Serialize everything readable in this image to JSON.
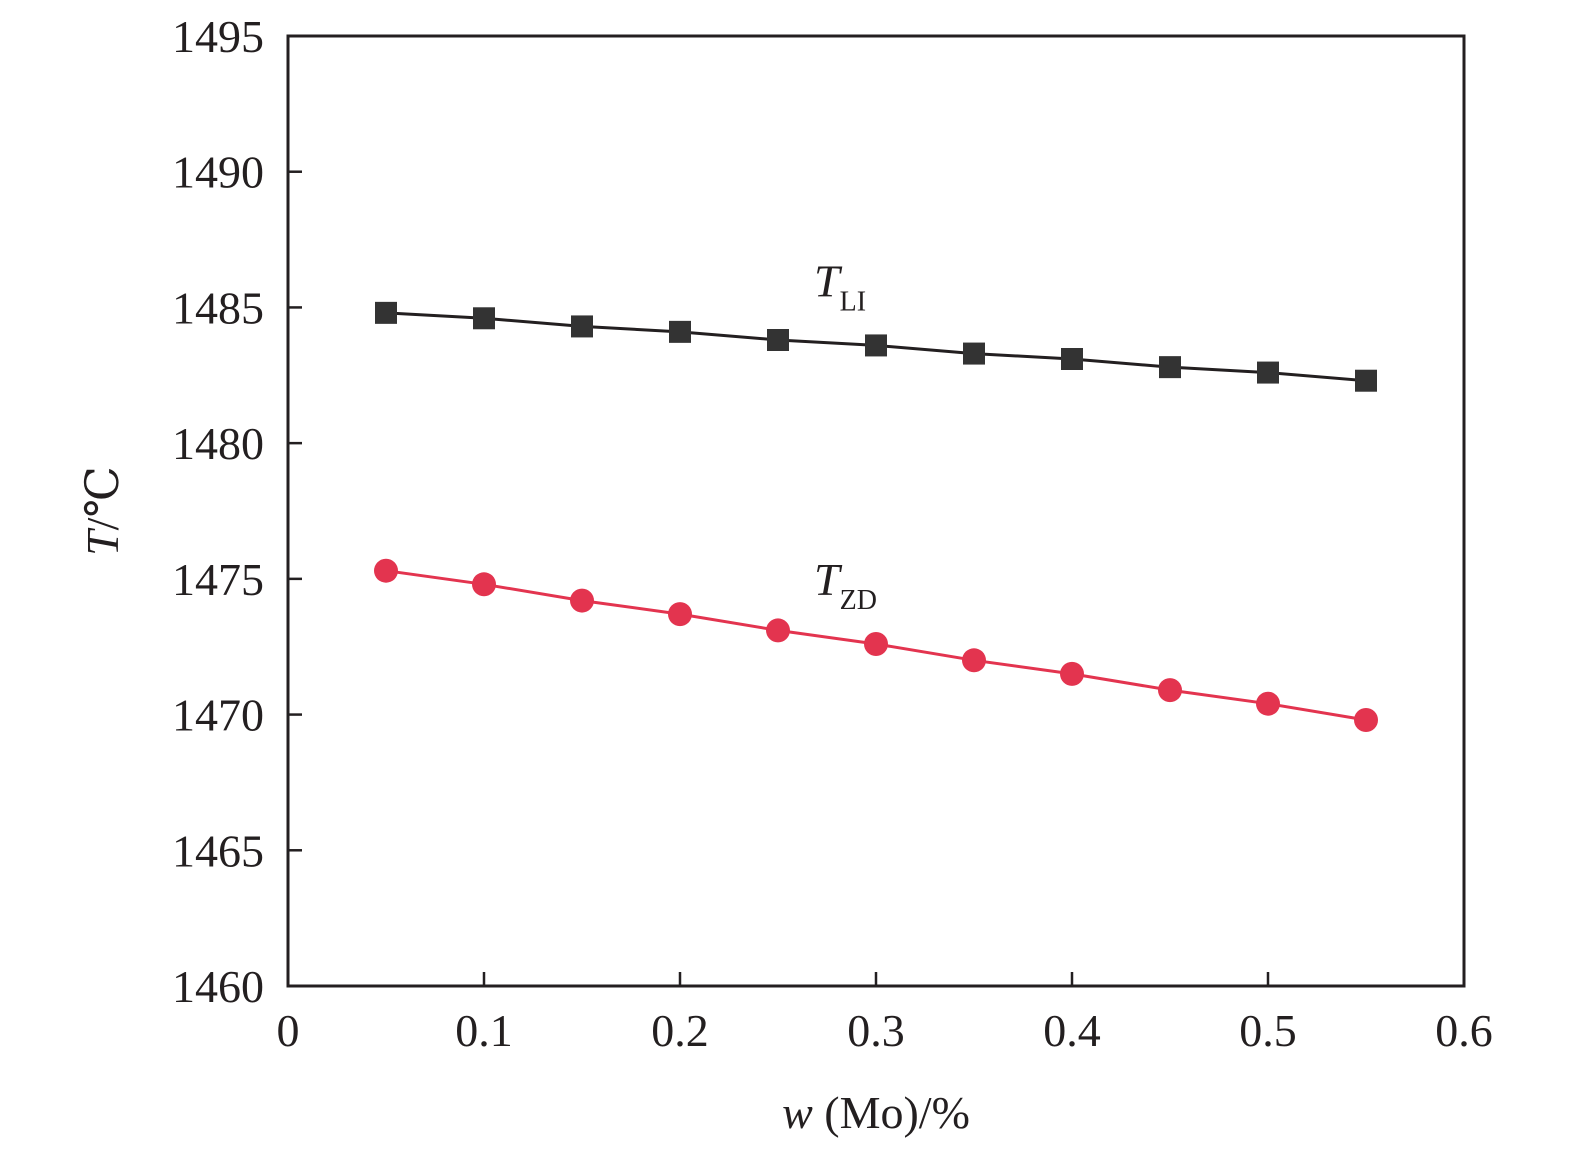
{
  "chart_data": {
    "type": "line",
    "title": "",
    "xlabel": {
      "italic": "w",
      "rest": " (Mo)/%"
    },
    "ylabel": {
      "italic": "T",
      "rest": "/℃"
    },
    "xlim": [
      0,
      0.6
    ],
    "ylim": [
      1460,
      1495
    ],
    "xticks": [
      0,
      0.1,
      0.2,
      0.3,
      0.4,
      0.5,
      0.6
    ],
    "xtick_labels": [
      "0",
      "0.1",
      "0.2",
      "0.3",
      "0.4",
      "0.5",
      "0.6"
    ],
    "yticks": [
      1460,
      1465,
      1470,
      1475,
      1480,
      1485,
      1490,
      1495
    ],
    "ytick_labels": [
      "1460",
      "1465",
      "1470",
      "1475",
      "1480",
      "1485",
      "1490",
      "1495"
    ],
    "grid": false,
    "legend": "none",
    "x": [
      0.05,
      0.1,
      0.15,
      0.2,
      0.25,
      0.3,
      0.35,
      0.4,
      0.45,
      0.5,
      0.55
    ],
    "series": [
      {
        "name": "T_LI",
        "label_main": "T",
        "label_sub": "LI",
        "label_at": [
          0.3,
          1485.4
        ],
        "marker": "square",
        "color": "#333333",
        "line_color": "#231f20",
        "values": [
          1484.8,
          1484.6,
          1484.3,
          1484.1,
          1483.8,
          1483.6,
          1483.3,
          1483.1,
          1482.8,
          1482.6,
          1482.3
        ]
      },
      {
        "name": "T_ZD",
        "label_main": "T",
        "label_sub": "ZD",
        "label_at": [
          0.3,
          1474.4
        ],
        "marker": "circle",
        "color": "#e3344f",
        "line_color": "#e3344f",
        "values": [
          1475.3,
          1474.8,
          1474.2,
          1473.7,
          1473.1,
          1472.6,
          1472.0,
          1471.5,
          1470.9,
          1470.4,
          1469.8
        ]
      }
    ]
  }
}
